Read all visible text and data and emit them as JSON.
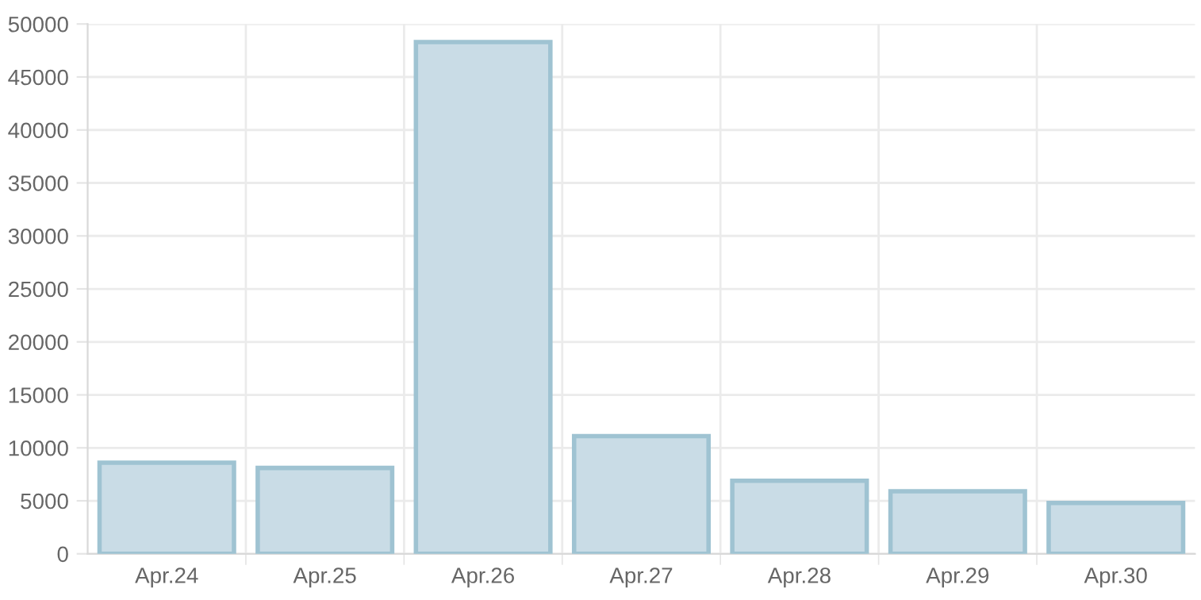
{
  "chart_data": {
    "type": "bar",
    "categories": [
      "Apr.24",
      "Apr.25",
      "Apr.26",
      "Apr.27",
      "Apr.28",
      "Apr.29",
      "Apr.30"
    ],
    "values": [
      8600,
      8100,
      48300,
      11100,
      6900,
      5900,
      4800
    ],
    "color": "#c9dce6",
    "ylim": [
      0,
      50000
    ],
    "yticks": [
      0,
      5000,
      10000,
      15000,
      20000,
      25000,
      30000,
      35000,
      40000,
      45000,
      50000
    ],
    "grid": true
  }
}
